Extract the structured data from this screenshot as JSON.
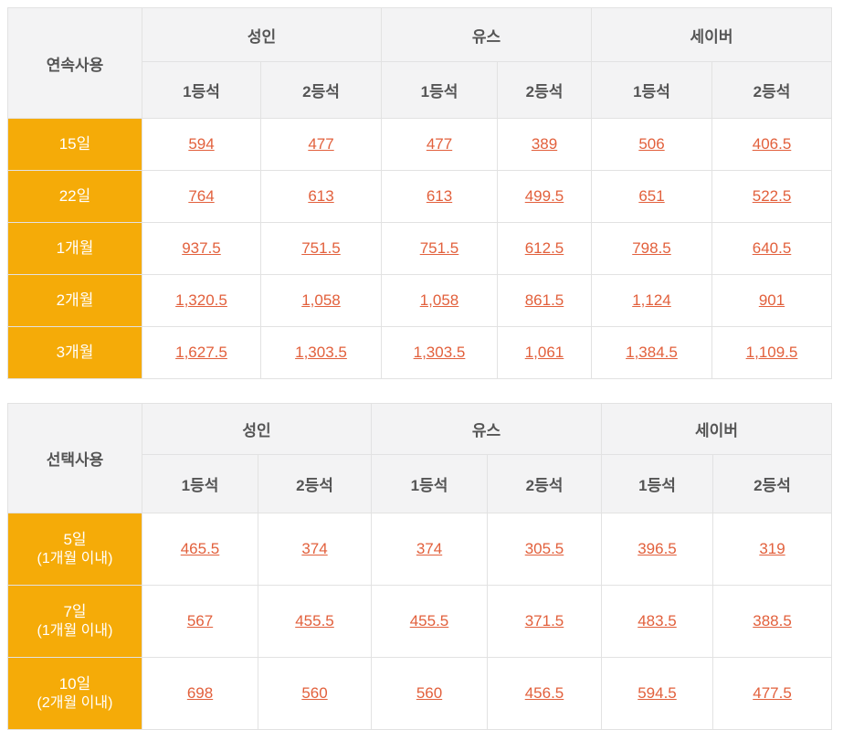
{
  "colors": {
    "accent_orange": "#f5ab08",
    "header_bg": "#f3f3f4",
    "header_text": "#555555",
    "price_link": "#e2603c",
    "border": "#e2e2e2"
  },
  "tables": [
    {
      "title": "연속사용",
      "groups": [
        "성인",
        "유스",
        "세이버"
      ],
      "class_labels": [
        "1등석",
        "2등석"
      ],
      "rows": [
        {
          "label": "15일",
          "sublabel": "",
          "values": [
            "594",
            "477",
            "477",
            "389",
            "506",
            "406.5"
          ]
        },
        {
          "label": "22일",
          "sublabel": "",
          "values": [
            "764",
            "613",
            "613",
            "499.5",
            "651",
            "522.5"
          ]
        },
        {
          "label": "1개월",
          "sublabel": "",
          "values": [
            "937.5",
            "751.5",
            "751.5",
            "612.5",
            "798.5",
            "640.5"
          ]
        },
        {
          "label": "2개월",
          "sublabel": "",
          "values": [
            "1,320.5",
            "1,058",
            "1,058",
            "861.5",
            "1,124",
            "901"
          ]
        },
        {
          "label": "3개월",
          "sublabel": "",
          "values": [
            "1,627.5",
            "1,303.5",
            "1,303.5",
            "1,061",
            "1,384.5",
            "1,109.5"
          ]
        }
      ]
    },
    {
      "title": "선택사용",
      "groups": [
        "성인",
        "유스",
        "세이버"
      ],
      "class_labels": [
        "1등석",
        "2등석"
      ],
      "rows": [
        {
          "label": "5일",
          "sublabel": "(1개월 이내)",
          "values": [
            "465.5",
            "374",
            "374",
            "305.5",
            "396.5",
            "319"
          ]
        },
        {
          "label": "7일",
          "sublabel": "(1개월 이내)",
          "values": [
            "567",
            "455.5",
            "455.5",
            "371.5",
            "483.5",
            "388.5"
          ]
        },
        {
          "label": "10일",
          "sublabel": "(2개월 이내)",
          "values": [
            "698",
            "560",
            "560",
            "456.5",
            "594.5",
            "477.5"
          ]
        }
      ]
    }
  ]
}
